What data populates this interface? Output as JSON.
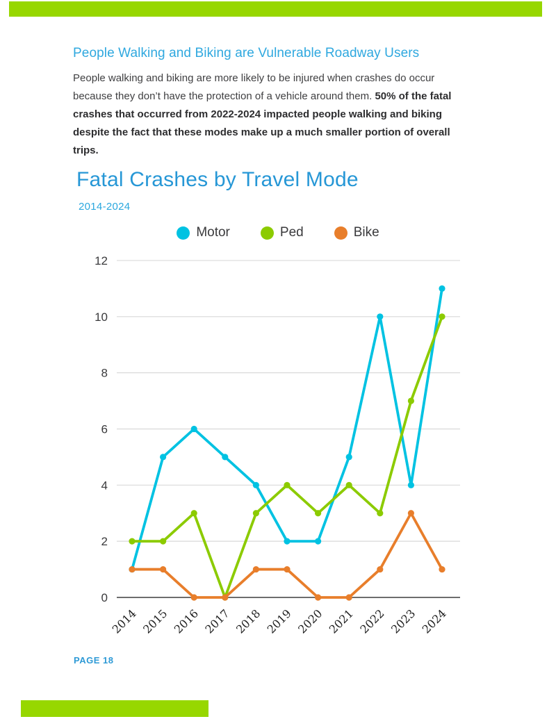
{
  "page": {
    "page_number": "PAGE 18"
  },
  "colors": {
    "accent_green": "#97D700",
    "heading_blue": "#2FA8DF",
    "title_blue": "#2697D6",
    "subtitle_blue": "#2AA7DE",
    "page_number_blue": "#2E9AD6",
    "motor": "#00C2E2",
    "ped": "#8CCB00",
    "bike": "#E87E2B"
  },
  "header": {
    "heading": "People Walking and Biking are Vulnerable Roadway Users",
    "body_regular": "People walking and biking are more likely to be injured when crashes do occur because they don’t have the protection of a vehicle around them. ",
    "body_bold": "50% of the fatal crashes that occurred from 2022-2024 impacted people walking and biking despite the fact that these modes make up a much smaller portion of overall trips."
  },
  "chart": {
    "title": "Fatal Crashes by Travel Mode",
    "subtitle": "2014-2024"
  },
  "chart_data": {
    "type": "line",
    "title": "Fatal Crashes by Travel Mode",
    "subtitle": "2014-2024",
    "x": [
      "2014",
      "2015",
      "2016",
      "2017",
      "2018",
      "2019",
      "2020",
      "2021",
      "2022",
      "2023",
      "2024"
    ],
    "series": [
      {
        "name": "Motor",
        "color": "#00C2E2",
        "values": [
          1,
          5,
          6,
          5,
          4,
          2,
          2,
          5,
          10,
          4,
          11
        ]
      },
      {
        "name": "Ped",
        "color": "#8CCB00",
        "values": [
          2,
          2,
          3,
          0,
          3,
          4,
          3,
          4,
          3,
          7,
          10
        ]
      },
      {
        "name": "Bike",
        "color": "#E87E2B",
        "values": [
          1,
          1,
          0,
          0,
          1,
          1,
          0,
          0,
          1,
          3,
          1
        ]
      }
    ],
    "xlabel": "",
    "ylabel": "",
    "ylim": [
      0,
      12
    ],
    "yticks": [
      0,
      2,
      4,
      6,
      8,
      10,
      12
    ],
    "grid": true,
    "legend_position": "top"
  }
}
